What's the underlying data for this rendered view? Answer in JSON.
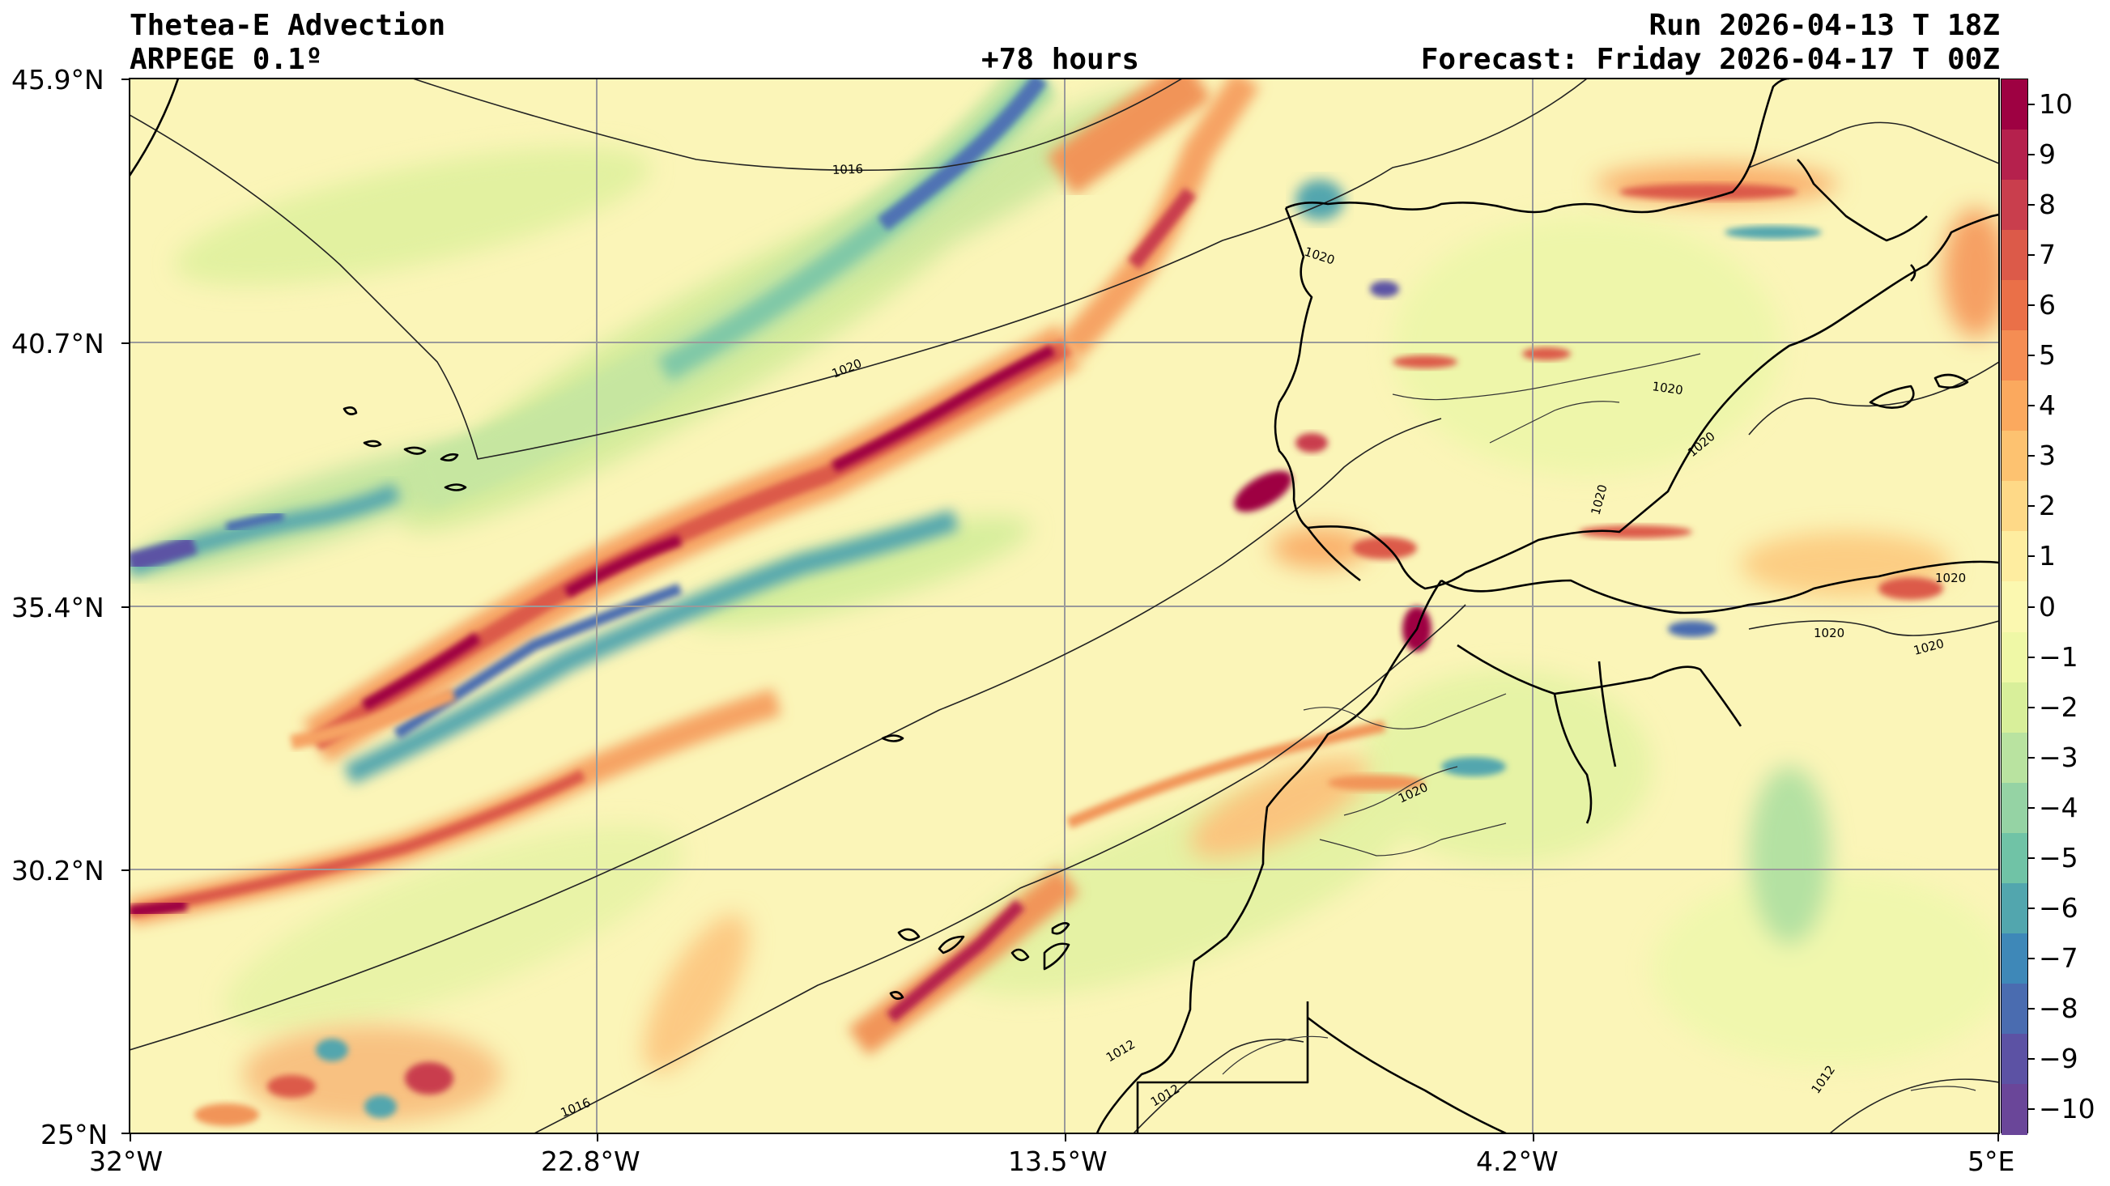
{
  "header": {
    "title_line1": "Thetea-E Advection",
    "title_line2": "ARPEGE 0.1º",
    "lead_time": "+78 hours",
    "run": "Run 2026-04-13 T 18Z",
    "forecast": "Forecast: Friday 2026-04-17 T 00Z"
  },
  "axes": {
    "lat_labels": [
      "45.9°N",
      "40.7°N",
      "35.4°N",
      "30.2°N",
      "25°N"
    ],
    "lon_labels": [
      "32°W",
      "22.8°W",
      "13.5°W",
      "4.2°W",
      "5°E"
    ]
  },
  "colorbar": {
    "labels": [
      "10",
      "9",
      "8",
      "7",
      "6",
      "5",
      "4",
      "3",
      "2",
      "1",
      "0",
      "−1",
      "−2",
      "−3",
      "−4",
      "−5",
      "−6",
      "−7",
      "−8",
      "−9",
      "−10"
    ],
    "colors": [
      "#9e0142",
      "#b5214d",
      "#c93e4d",
      "#dc5a49",
      "#ea7048",
      "#f58d53",
      "#fba95e",
      "#fdc270",
      "#fed987",
      "#feeda0",
      "#fbf8b0",
      "#eff8a6",
      "#d8ef9a",
      "#b9e3a0",
      "#95d3a4",
      "#70c3a6",
      "#52a6ae",
      "#3e88b8",
      "#4a6cb0",
      "#5c52a4",
      "#6a4699"
    ]
  },
  "isobars": [
    "1016",
    "1020",
    "1020",
    "1020",
    "1020",
    "1020",
    "1020",
    "1020",
    "1020",
    "1020",
    "1012",
    "1012",
    "1012",
    "1016"
  ],
  "colors": {
    "background_field": "#fbf5b8",
    "coast": "#000000",
    "grid": "#9a9a9a"
  }
}
